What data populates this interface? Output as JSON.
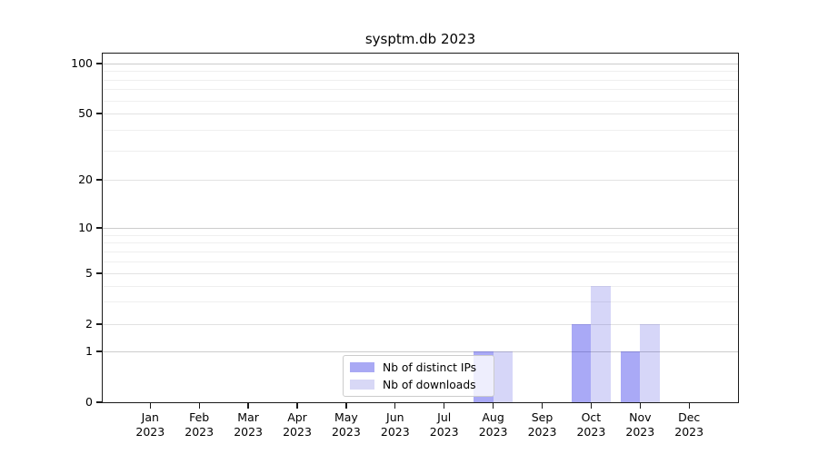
{
  "chart_data": {
    "type": "bar",
    "title": "sysptm.db 2023",
    "categories": [
      "Jan 2023",
      "Feb 2023",
      "Mar 2023",
      "Apr 2023",
      "May 2023",
      "Jun 2023",
      "Jul 2023",
      "Aug 2023",
      "Sep 2023",
      "Oct 2023",
      "Nov 2023",
      "Dec 2023"
    ],
    "x_tick_months": [
      "Jan",
      "Feb",
      "Mar",
      "Apr",
      "May",
      "Jun",
      "Jul",
      "Aug",
      "Sep",
      "Oct",
      "Nov",
      "Dec"
    ],
    "x_tick_year": "2023",
    "series": [
      {
        "name": "Nb of distinct IPs",
        "color": "rgba(10,10,228,0.35)",
        "solid_color": "#a9a9f4",
        "values": [
          0,
          0,
          0,
          0,
          0,
          0,
          0,
          1,
          0,
          2,
          1,
          0
        ]
      },
      {
        "name": "Nb of downloads",
        "color": "rgba(10,10,215,0.17)",
        "solid_color": "#d8d8f6",
        "values": [
          0,
          0,
          0,
          0,
          0,
          0,
          0,
          1,
          0,
          4,
          2,
          0
        ]
      }
    ],
    "xlabel": "",
    "ylabel": "",
    "yscale": "symlog",
    "ylim": [
      0,
      120
    ],
    "yticks": [
      100,
      50,
      20,
      10,
      5,
      2,
      1,
      0
    ],
    "ytick_labels": [
      "100",
      "50",
      "20",
      "10",
      "5",
      "2",
      "1",
      "0"
    ],
    "yticks_minor": [
      3,
      4,
      6,
      7,
      8,
      9,
      30,
      40,
      60,
      70,
      80,
      90
    ],
    "grid": "both",
    "legend_position": "lower center"
  },
  "colors": {
    "background": "#ffffff",
    "grid_decade": "#cccccc",
    "grid_major": "#e2e2e2",
    "grid_minor": "#efefef",
    "spine": "#1a1a1a",
    "text": "#000000",
    "legend_border": "#cccccc"
  }
}
